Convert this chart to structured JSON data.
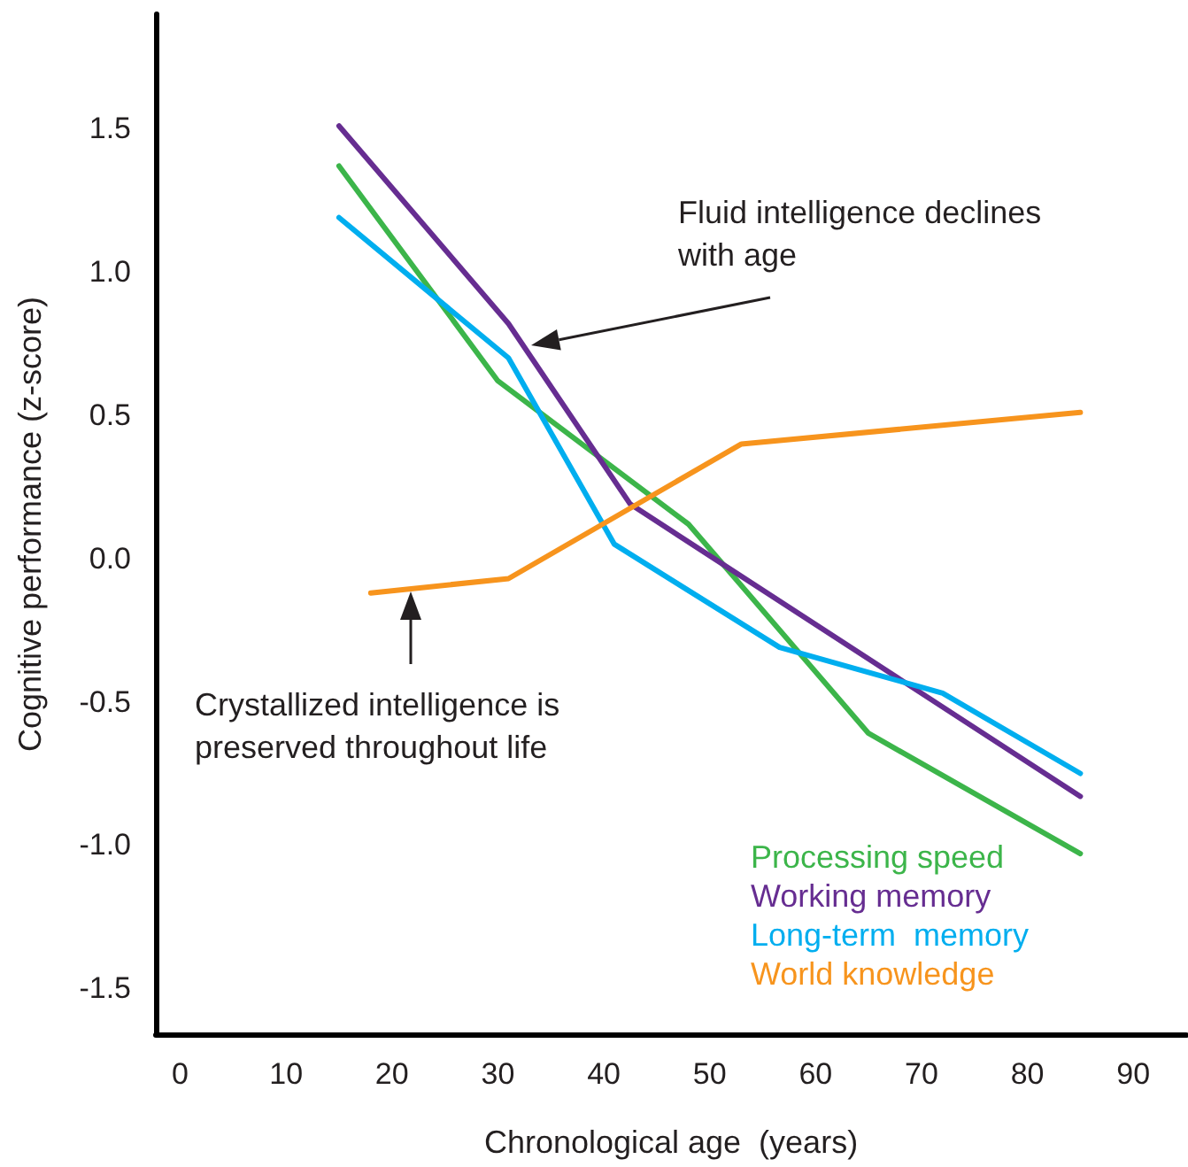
{
  "chart_data": {
    "type": "line",
    "xlabel": "Chronological age  (years)",
    "ylabel": "Cognitive performance (z-score)",
    "xlim": [
      -2.3,
      95
    ],
    "ylim": [
      -1.66,
      1.9
    ],
    "xticks": [
      0,
      10,
      20,
      30,
      40,
      50,
      60,
      70,
      80,
      90
    ],
    "yticks": [
      {
        "value": -1.5,
        "label": "-1.5"
      },
      {
        "value": -1,
        "label": "-1.0"
      },
      {
        "value": -0.5,
        "label": "-0.5"
      },
      {
        "value": 0,
        "label": "0.0"
      },
      {
        "value": 0.5,
        "label": "0.5"
      },
      {
        "value": 1,
        "label": "1.0"
      },
      {
        "value": 1.5,
        "label": "1.5"
      }
    ],
    "grid": false,
    "legend": "bottom right",
    "marker": "none",
    "line_style": "solid",
    "series": [
      {
        "name": "Processing speed",
        "color": "#3cb54a",
        "x": [
          15,
          30,
          48,
          65,
          85
        ],
        "values": [
          1.37,
          0.62,
          0.12,
          -0.61,
          -1.03
        ]
      },
      {
        "name": "Working memory",
        "color": "#662d91",
        "x": [
          15,
          31,
          42.5,
          85
        ],
        "values": [
          1.51,
          0.82,
          0.19,
          -0.83
        ]
      },
      {
        "name": "Long-term  memory",
        "color": "#00aeef",
        "x": [
          15,
          31,
          41,
          56.6,
          72,
          85
        ],
        "values": [
          1.19,
          0.7,
          0.05,
          -0.31,
          -0.47,
          -0.75
        ]
      },
      {
        "name": "World knowledge",
        "color": "#f7941d",
        "x": [
          18,
          31,
          53,
          85
        ],
        "values": [
          -0.12,
          -0.07,
          0.4,
          0.51
        ]
      }
    ],
    "annotations": [
      "Fluid intelligence declines with age",
      "Crystallized intelligence is preserved throughout life"
    ]
  }
}
